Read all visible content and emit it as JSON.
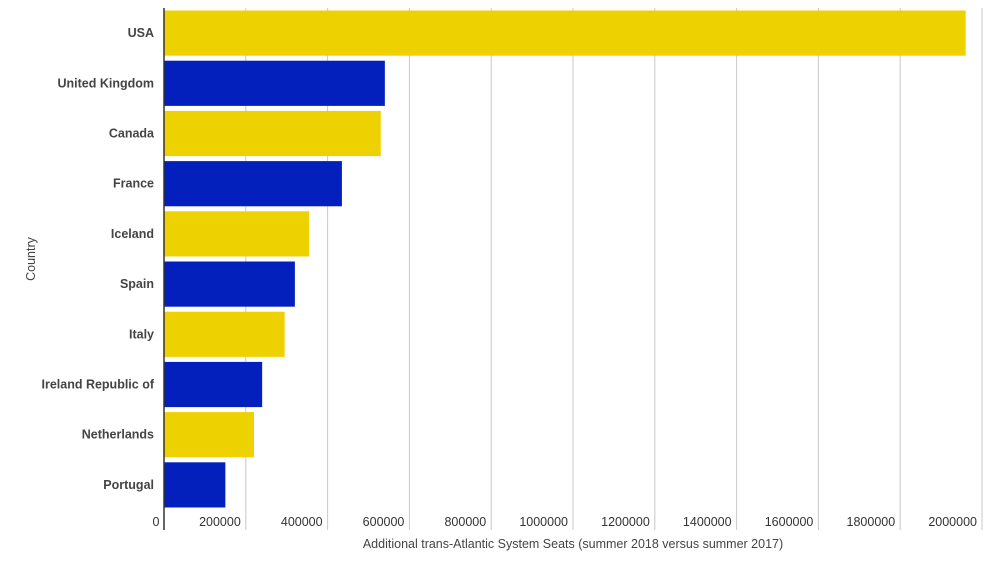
{
  "chart_data": {
    "type": "bar",
    "orientation": "horizontal",
    "categories": [
      "USA",
      "United Kingdom",
      "Canada",
      "France",
      "Iceland",
      "Spain",
      "Italy",
      "Ireland Republic of",
      "Netherlands",
      "Portugal"
    ],
    "values": [
      1960000,
      540000,
      530000,
      435000,
      355000,
      320000,
      295000,
      240000,
      220000,
      150000
    ],
    "bar_colors": [
      "#EDD100",
      "#0320BD",
      "#EDD100",
      "#0320BD",
      "#EDD100",
      "#0320BD",
      "#EDD100",
      "#0320BD",
      "#EDD100",
      "#0320BD"
    ],
    "xlabel": "Additional trans-Atlantic System Seats (summer 2018 versus summer 2017)",
    "ylabel": "Country",
    "xlim": [
      0,
      2000000
    ],
    "xticks": [
      "0",
      "200000",
      "400000",
      "600000",
      "800000",
      "1000000",
      "1200000",
      "1400000",
      "1600000",
      "1800000",
      "2000000"
    ],
    "grid": "vertical",
    "legend": "none"
  }
}
